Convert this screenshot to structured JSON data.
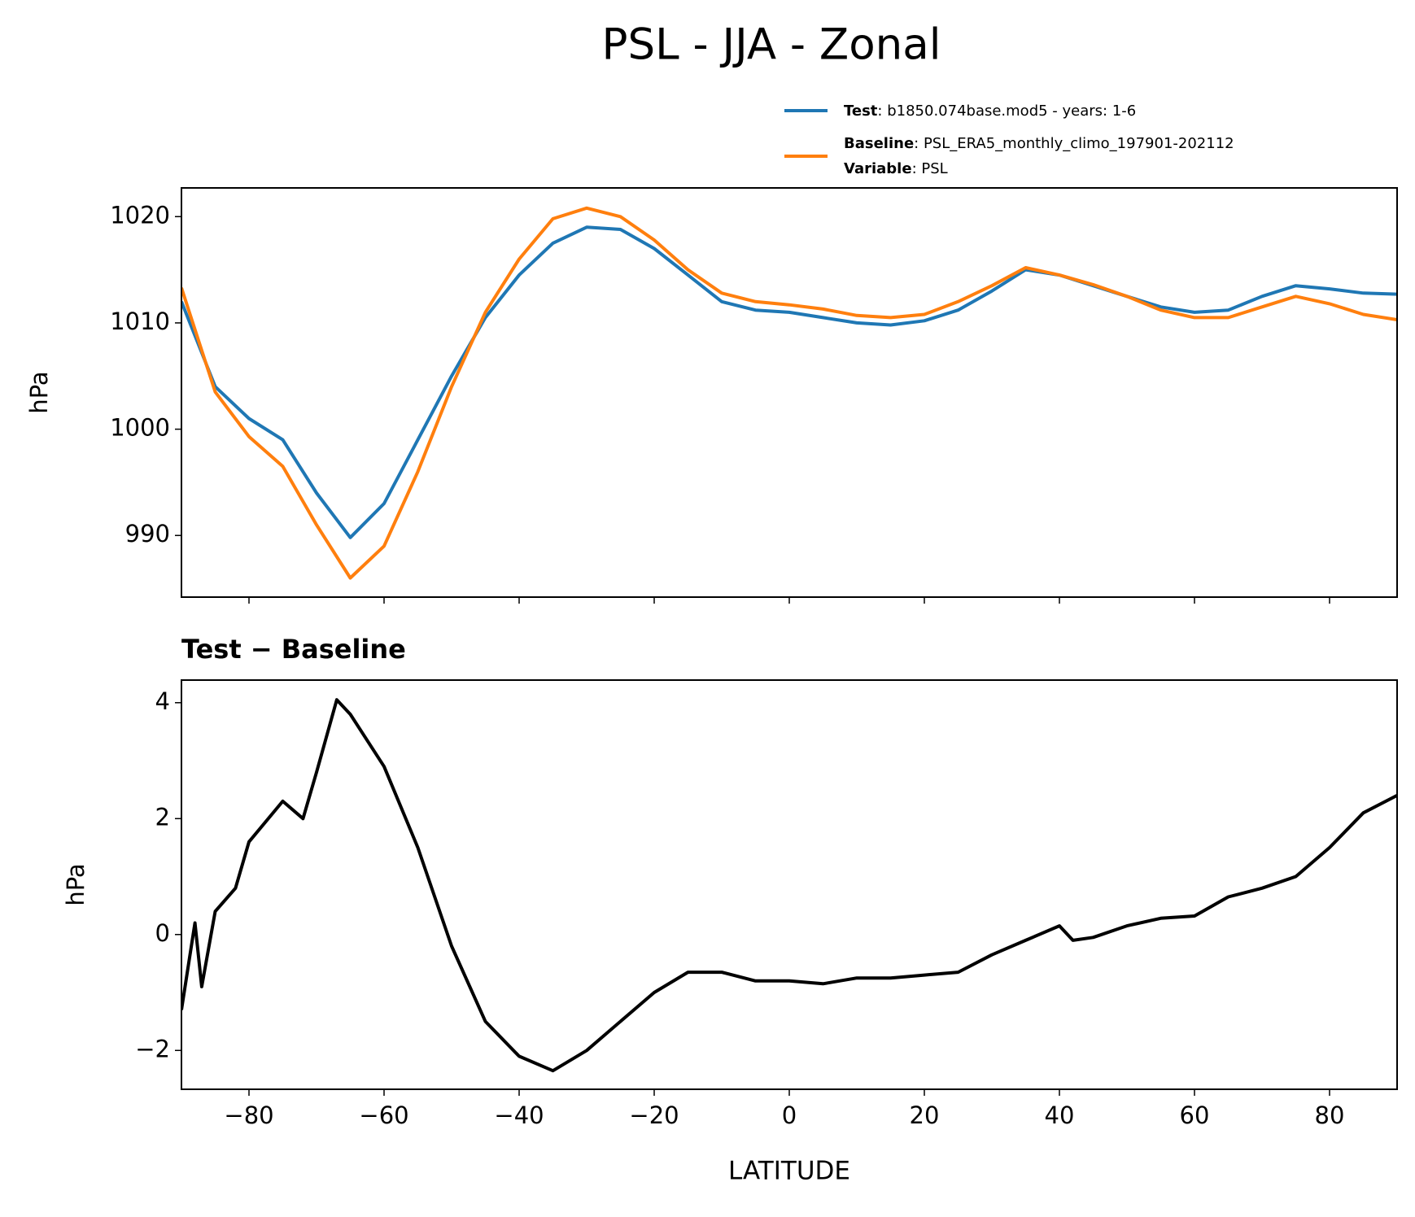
{
  "title": "PSL - JJA - Zonal",
  "legend": [
    {
      "name": "Test",
      "description": ": b1850.074base.mod5 - years: 1-6"
    },
    {
      "name": "Baseline",
      "description": ": PSL_ERA5_monthly_climo_197901-202112"
    },
    {
      "name": "Variable",
      "description": ": PSL"
    }
  ],
  "chart_data": [
    {
      "type": "line",
      "ylabel": "hPa",
      "x": [
        -90,
        -85,
        -80,
        -75,
        -70,
        -65,
        -60,
        -55,
        -50,
        -45,
        -40,
        -35,
        -30,
        -25,
        -20,
        -15,
        -10,
        -5,
        0,
        5,
        10,
        15,
        20,
        25,
        30,
        35,
        40,
        45,
        50,
        55,
        60,
        65,
        70,
        75,
        80,
        85,
        90
      ],
      "series": [
        {
          "name": "Test",
          "color": "#1f77b4",
          "values": [
            1012,
            1004,
            1001,
            999,
            994,
            989.8,
            993,
            999,
            1005,
            1010.5,
            1014.5,
            1017.5,
            1019,
            1018.8,
            1017,
            1014.5,
            1012,
            1011.2,
            1011,
            1010.5,
            1010,
            1009.8,
            1010.2,
            1011.2,
            1013,
            1015,
            1014.5,
            1013.5,
            1012.5,
            1011.5,
            1011,
            1011.2,
            1012.5,
            1013.5,
            1013.2,
            1012.8,
            1012.7
          ]
        },
        {
          "name": "Baseline",
          "color": "#ff7f0e",
          "values": [
            1013.3,
            1003.5,
            999.3,
            996.5,
            991,
            986,
            989,
            996,
            1004,
            1011,
            1016,
            1019.8,
            1020.8,
            1020,
            1017.8,
            1015,
            1012.8,
            1012,
            1011.7,
            1011.3,
            1010.7,
            1010.5,
            1010.8,
            1012,
            1013.5,
            1015.2,
            1014.5,
            1013.6,
            1012.5,
            1011.2,
            1010.5,
            1010.5,
            1011.5,
            1012.5,
            1011.8,
            1010.8,
            1010.3
          ]
        }
      ],
      "xlim": [
        -90,
        90
      ],
      "xticks": [
        -80,
        -60,
        -40,
        -20,
        0,
        20,
        40,
        60,
        80
      ],
      "ylim": [
        984.2,
        1022.7
      ],
      "yticks": [
        990,
        1000,
        1010,
        1020
      ]
    },
    {
      "type": "line",
      "title": "Test − Baseline",
      "ylabel": "hPa",
      "xlabel": "LATITUDE",
      "x": [
        -90,
        -88,
        -87,
        -85,
        -82,
        -80,
        -75,
        -72,
        -70,
        -67,
        -65,
        -60,
        -55,
        -50,
        -45,
        -40,
        -35,
        -30,
        -25,
        -20,
        -15,
        -10,
        -5,
        0,
        5,
        10,
        15,
        20,
        25,
        30,
        35,
        40,
        42,
        45,
        50,
        55,
        60,
        65,
        70,
        75,
        80,
        85,
        90
      ],
      "series": [
        {
          "color": "#000000",
          "values": [
            -1.3,
            0.2,
            -0.9,
            0.4,
            0.8,
            1.6,
            2.3,
            2.0,
            2.8,
            4.05,
            3.8,
            2.9,
            1.5,
            -0.2,
            -1.5,
            -2.1,
            -2.35,
            -2.0,
            -1.5,
            -1.0,
            -0.65,
            -0.65,
            -0.8,
            -0.8,
            -0.85,
            -0.75,
            -0.75,
            -0.7,
            -0.65,
            -0.35,
            -0.1,
            0.15,
            -0.1,
            -0.05,
            0.15,
            0.28,
            0.32,
            0.65,
            0.8,
            1.0,
            1.5,
            2.1,
            2.4
          ]
        }
      ],
      "xlim": [
        -90,
        90
      ],
      "xticks": [
        {
          "value": -80,
          "label": "−80"
        },
        {
          "value": -60,
          "label": "−60"
        },
        {
          "value": -40,
          "label": "−40"
        },
        {
          "value": -20,
          "label": "−20"
        },
        0,
        20,
        40,
        60,
        80
      ],
      "ylim": [
        -2.67,
        4.39
      ],
      "yticks": [
        {
          "value": -2,
          "label": "−2"
        },
        0,
        2,
        4
      ]
    }
  ]
}
